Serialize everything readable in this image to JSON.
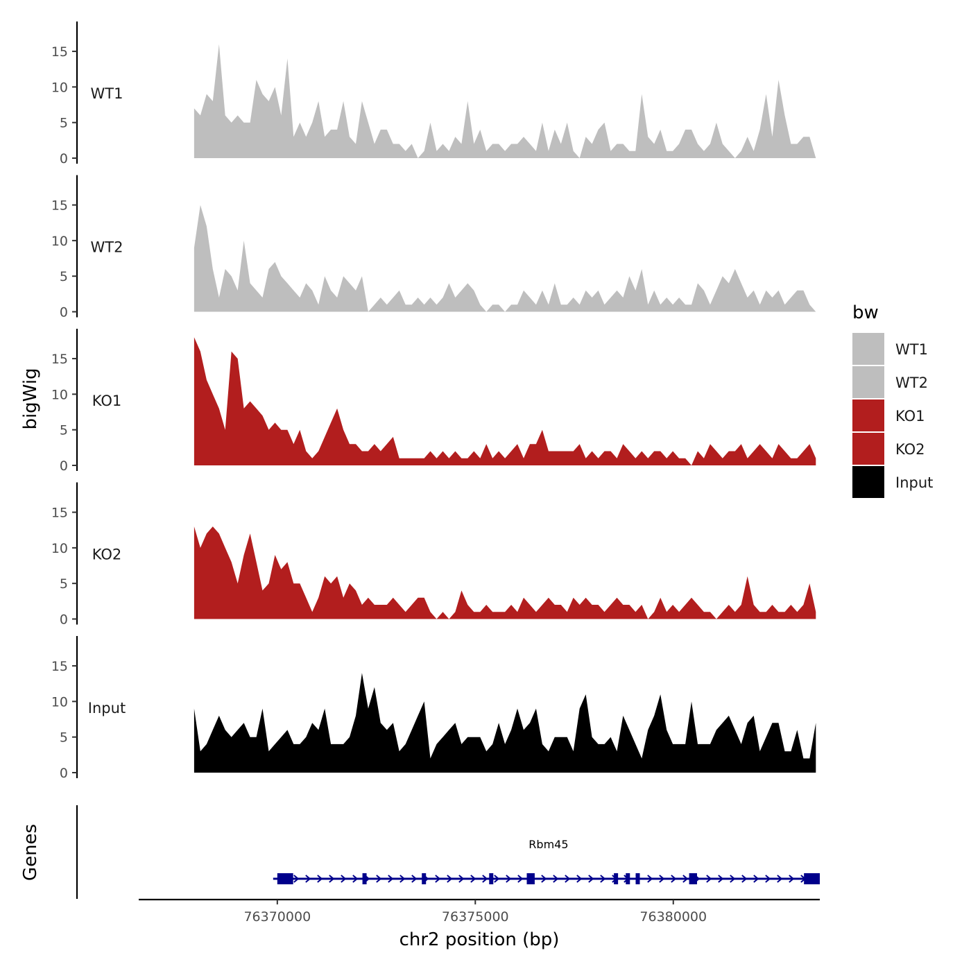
{
  "chart_data": {
    "type": "area",
    "ylabel": "bigWig",
    "genes_label": "Genes",
    "xlabel": "chr2 position (bp)",
    "xlim": [
      76366500,
      76383700
    ],
    "ylim": [
      0,
      19
    ],
    "x_ticks": [
      76370000,
      76375000,
      76380000
    ],
    "x_tick_labels": [
      "76370000",
      "76375000",
      "76380000"
    ],
    "y_ticks": [
      0,
      5,
      10,
      15
    ],
    "y_tick_labels": [
      "0",
      "5",
      "10",
      "15"
    ],
    "legend": {
      "title": "bw",
      "position": "right",
      "items": [
        {
          "label": "WT1",
          "color": "#bebebe"
        },
        {
          "label": "WT2",
          "color": "#bebebe"
        },
        {
          "label": "KO1",
          "color": "#b21e1e"
        },
        {
          "label": "KO2",
          "color": "#b21e1e"
        },
        {
          "label": "Input",
          "color": "#000000"
        }
      ]
    },
    "x_start": 76367900,
    "x_end": 76383600,
    "series": [
      {
        "name": "WT1",
        "color": "#bebebe",
        "values": [
          7,
          6,
          9,
          8,
          16,
          6,
          5,
          6,
          5,
          5,
          11,
          9,
          8,
          10,
          6,
          14,
          3,
          5,
          3,
          5,
          8,
          3,
          4,
          4,
          8,
          3,
          2,
          8,
          5,
          2,
          4,
          4,
          2,
          2,
          1,
          2,
          0,
          1,
          5,
          1,
          2,
          1,
          3,
          2,
          8,
          2,
          4,
          1,
          2,
          2,
          1,
          2,
          2,
          3,
          2,
          1,
          5,
          1,
          4,
          2,
          5,
          1,
          0,
          3,
          2,
          4,
          5,
          1,
          2,
          2,
          1,
          1,
          9,
          3,
          2,
          4,
          1,
          1,
          2,
          4,
          4,
          2,
          1,
          2,
          5,
          2,
          1,
          0,
          1,
          3,
          1,
          4,
          9,
          3,
          11,
          6,
          2,
          2,
          3,
          3,
          0
        ]
      },
      {
        "name": "WT2",
        "color": "#bebebe",
        "values": [
          9,
          15,
          12,
          6,
          2,
          6,
          5,
          3,
          10,
          4,
          3,
          2,
          6,
          7,
          5,
          4,
          3,
          2,
          4,
          3,
          1,
          5,
          3,
          2,
          5,
          4,
          3,
          5,
          0,
          1,
          2,
          1,
          2,
          3,
          1,
          1,
          2,
          1,
          2,
          1,
          2,
          4,
          2,
          3,
          4,
          3,
          1,
          0,
          1,
          1,
          0,
          1,
          1,
          3,
          2,
          1,
          3,
          1,
          4,
          1,
          1,
          2,
          1,
          3,
          2,
          3,
          1,
          2,
          3,
          2,
          5,
          3,
          6,
          1,
          3,
          1,
          2,
          1,
          2,
          1,
          1,
          4,
          3,
          1,
          3,
          5,
          4,
          6,
          4,
          2,
          3,
          1,
          3,
          2,
          3,
          1,
          2,
          3,
          3,
          1,
          0
        ]
      },
      {
        "name": "KO1",
        "color": "#b21e1e",
        "values": [
          18,
          16,
          12,
          10,
          8,
          5,
          16,
          15,
          8,
          9,
          8,
          7,
          5,
          6,
          5,
          5,
          3,
          5,
          2,
          1,
          2,
          4,
          6,
          8,
          5,
          3,
          3,
          2,
          2,
          3,
          2,
          3,
          4,
          1,
          1,
          1,
          1,
          1,
          2,
          1,
          2,
          1,
          2,
          1,
          1,
          2,
          1,
          3,
          1,
          2,
          1,
          2,
          3,
          1,
          3,
          3,
          5,
          2,
          2,
          2,
          2,
          2,
          3,
          1,
          2,
          1,
          2,
          2,
          1,
          3,
          2,
          1,
          2,
          1,
          2,
          2,
          1,
          2,
          1,
          1,
          0,
          2,
          1,
          3,
          2,
          1,
          2,
          2,
          3,
          1,
          2,
          3,
          2,
          1,
          3,
          2,
          1,
          1,
          2,
          3,
          1
        ]
      },
      {
        "name": "KO2",
        "color": "#b21e1e",
        "values": [
          13,
          10,
          12,
          13,
          12,
          10,
          8,
          5,
          9,
          12,
          8,
          4,
          5,
          9,
          7,
          8,
          5,
          5,
          3,
          1,
          3,
          6,
          5,
          6,
          3,
          5,
          4,
          2,
          3,
          2,
          2,
          2,
          3,
          2,
          1,
          2,
          3,
          3,
          1,
          0,
          1,
          0,
          1,
          4,
          2,
          1,
          1,
          2,
          1,
          1,
          1,
          2,
          1,
          3,
          2,
          1,
          2,
          3,
          2,
          2,
          1,
          3,
          2,
          3,
          2,
          2,
          1,
          2,
          3,
          2,
          2,
          1,
          2,
          0,
          1,
          3,
          1,
          2,
          1,
          2,
          3,
          2,
          1,
          1,
          0,
          1,
          2,
          1,
          2,
          6,
          2,
          1,
          1,
          2,
          1,
          1,
          2,
          1,
          2,
          5,
          1
        ]
      },
      {
        "name": "Input",
        "color": "#000000",
        "values": [
          9,
          3,
          4,
          6,
          8,
          6,
          5,
          6,
          7,
          5,
          5,
          9,
          3,
          4,
          5,
          6,
          4,
          4,
          5,
          7,
          6,
          9,
          4,
          4,
          4,
          5,
          8,
          14,
          9,
          12,
          7,
          6,
          7,
          3,
          4,
          6,
          8,
          10,
          2,
          4,
          5,
          6,
          7,
          4,
          5,
          5,
          5,
          3,
          4,
          7,
          4,
          6,
          9,
          6,
          7,
          9,
          4,
          3,
          5,
          5,
          5,
          3,
          9,
          11,
          5,
          4,
          4,
          5,
          3,
          8,
          6,
          4,
          2,
          6,
          8,
          11,
          6,
          4,
          4,
          4,
          10,
          4,
          4,
          4,
          6,
          7,
          8,
          6,
          4,
          7,
          8,
          3,
          5,
          7,
          7,
          3,
          3,
          6,
          2,
          2,
          7
        ]
      }
    ],
    "gene": {
      "name": "Rbm45",
      "strand": "+",
      "start": 76370000,
      "end": 76383700,
      "exons": [
        [
          76370000,
          76370400
        ],
        [
          76372150,
          76372250
        ],
        [
          76373650,
          76373750
        ],
        [
          76375350,
          76375450
        ],
        [
          76376300,
          76376500
        ],
        [
          76378500,
          76378600
        ],
        [
          76378800,
          76378900
        ],
        [
          76379050,
          76379150
        ],
        [
          76380400,
          76380600
        ],
        [
          76383300,
          76383700
        ]
      ]
    }
  }
}
